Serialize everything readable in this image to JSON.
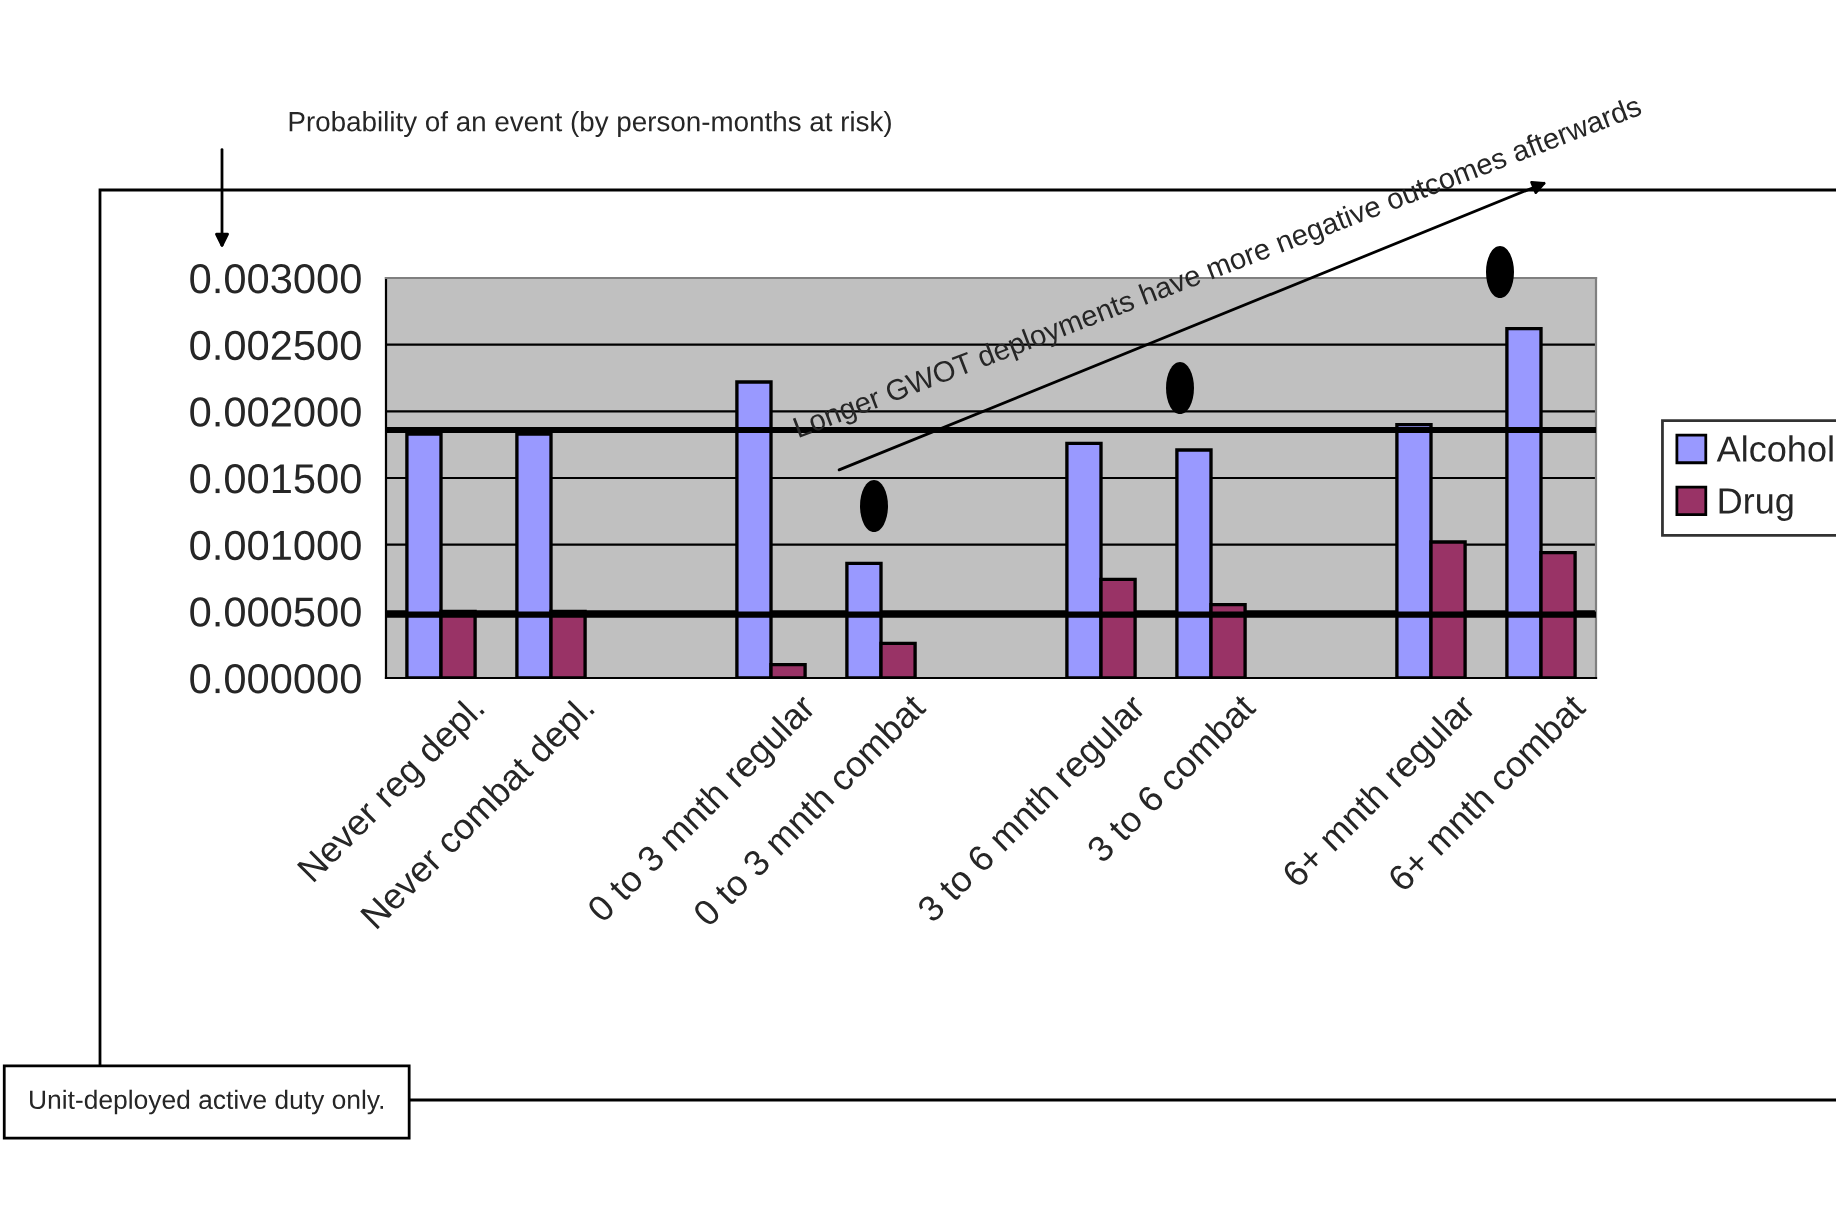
{
  "chart_data": {
    "type": "bar",
    "ylabel": "Probability of an event (by person-months at risk)",
    "categories": [
      "Never reg depl.",
      "Never combat depl.",
      null,
      "0 to 3 mnth regular",
      "0 to 3 mnth combat",
      null,
      "3 to 6 mnth regular",
      "3 to 6 combat",
      null,
      "6+ mnth regular",
      "6+ mnth combat"
    ],
    "series": [
      {
        "name": "Alcohol",
        "color": "#9999ff",
        "values": [
          0.00183,
          0.00183,
          null,
          0.00222,
          0.00086,
          null,
          0.00176,
          0.00171,
          null,
          0.0019,
          0.00262
        ]
      },
      {
        "name": "Drug",
        "color": "#993366",
        "values": [
          0.0005,
          0.0005,
          null,
          0.0001,
          0.00026,
          null,
          0.00074,
          0.00055,
          null,
          0.00102,
          0.00094
        ]
      }
    ],
    "ylim": [
      0,
      0.003
    ],
    "yticks": [
      {
        "value": 0,
        "label": "0.000000"
      },
      {
        "value": 0.0005,
        "label": "0.000500"
      },
      {
        "value": 0.001,
        "label": "0.001000"
      },
      {
        "value": 0.0015,
        "label": "0.001500"
      },
      {
        "value": 0.002,
        "label": "0.002000"
      },
      {
        "value": 0.0025,
        "label": "0.002500"
      },
      {
        "value": 0.003,
        "label": "0.003000"
      }
    ],
    "ref_lines": [
      {
        "axis": "y",
        "value": 0.00186,
        "color": "#000000"
      },
      {
        "axis": "y",
        "value": 0.000475,
        "color": "#000000"
      }
    ],
    "annotations": [
      "Longer GWOT deployments have more negative outcomes afterwards",
      "Unit-deployed active duty only."
    ],
    "grid": "y",
    "legend": "right"
  }
}
